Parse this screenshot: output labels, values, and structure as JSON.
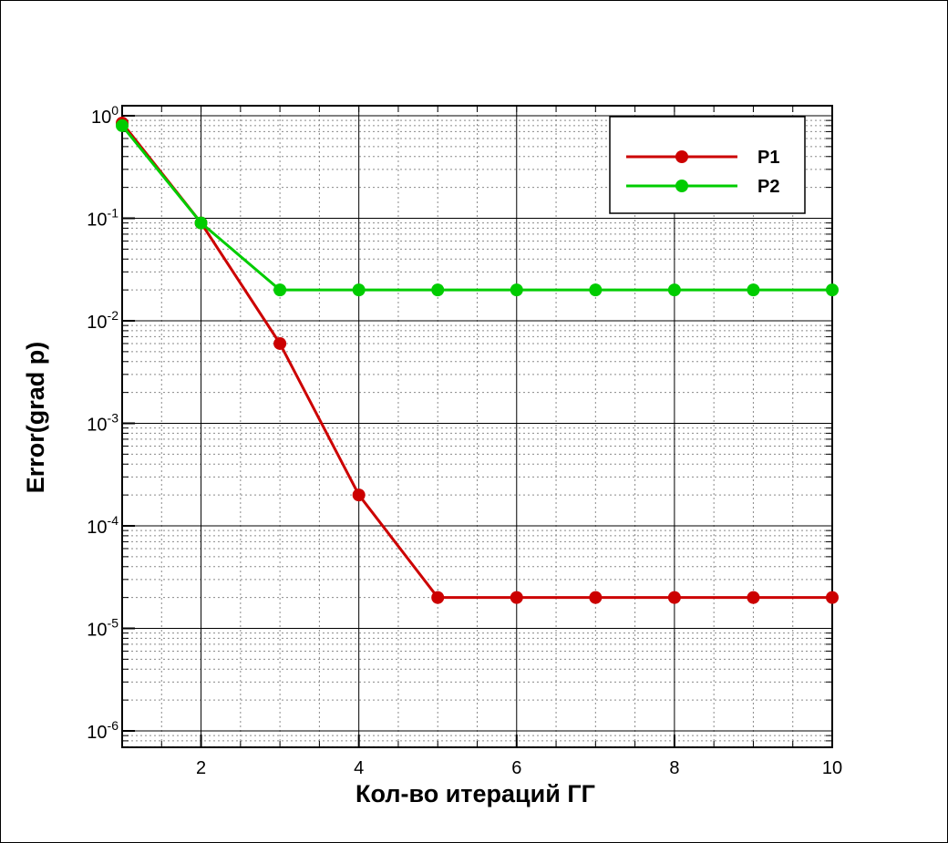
{
  "chart_data": {
    "type": "line",
    "xlabel": "Кол-во итераций ГГ",
    "ylabel": "Error(grad p)",
    "xlim": [
      1,
      10
    ],
    "ylim": [
      1e-06,
      1.3
    ],
    "y_scale": "log",
    "x_ticks": [
      2,
      4,
      6,
      8,
      10
    ],
    "x_tick_labels": [
      "2",
      "4",
      "6",
      "8",
      "10"
    ],
    "y_ticks": [
      {
        "value": 1,
        "base": "10",
        "exp": "0"
      },
      {
        "value": 0.1,
        "base": "10",
        "exp": "-1"
      },
      {
        "value": 0.01,
        "base": "10",
        "exp": "-2"
      },
      {
        "value": 0.001,
        "base": "10",
        "exp": "-3"
      },
      {
        "value": 0.0001,
        "base": "10",
        "exp": "-4"
      },
      {
        "value": 1e-05,
        "base": "10",
        "exp": "-5"
      },
      {
        "value": 1e-06,
        "base": "10",
        "exp": "-6"
      }
    ],
    "grid": true,
    "legend_position": "top-right",
    "series": [
      {
        "name": "P1",
        "color": "#cc0000",
        "x": [
          1,
          2,
          3,
          4,
          5,
          6,
          7,
          8,
          9,
          10
        ],
        "y": [
          0.85,
          0.09,
          0.006,
          0.0002,
          2e-05,
          2e-05,
          2e-05,
          2e-05,
          2e-05,
          2e-05
        ]
      },
      {
        "name": "P2",
        "color": "#00cc00",
        "x": [
          1,
          2,
          3,
          4,
          5,
          6,
          7,
          8,
          9,
          10
        ],
        "y": [
          0.8,
          0.09,
          0.02,
          0.02,
          0.02,
          0.02,
          0.02,
          0.02,
          0.02,
          0.02
        ]
      }
    ]
  }
}
